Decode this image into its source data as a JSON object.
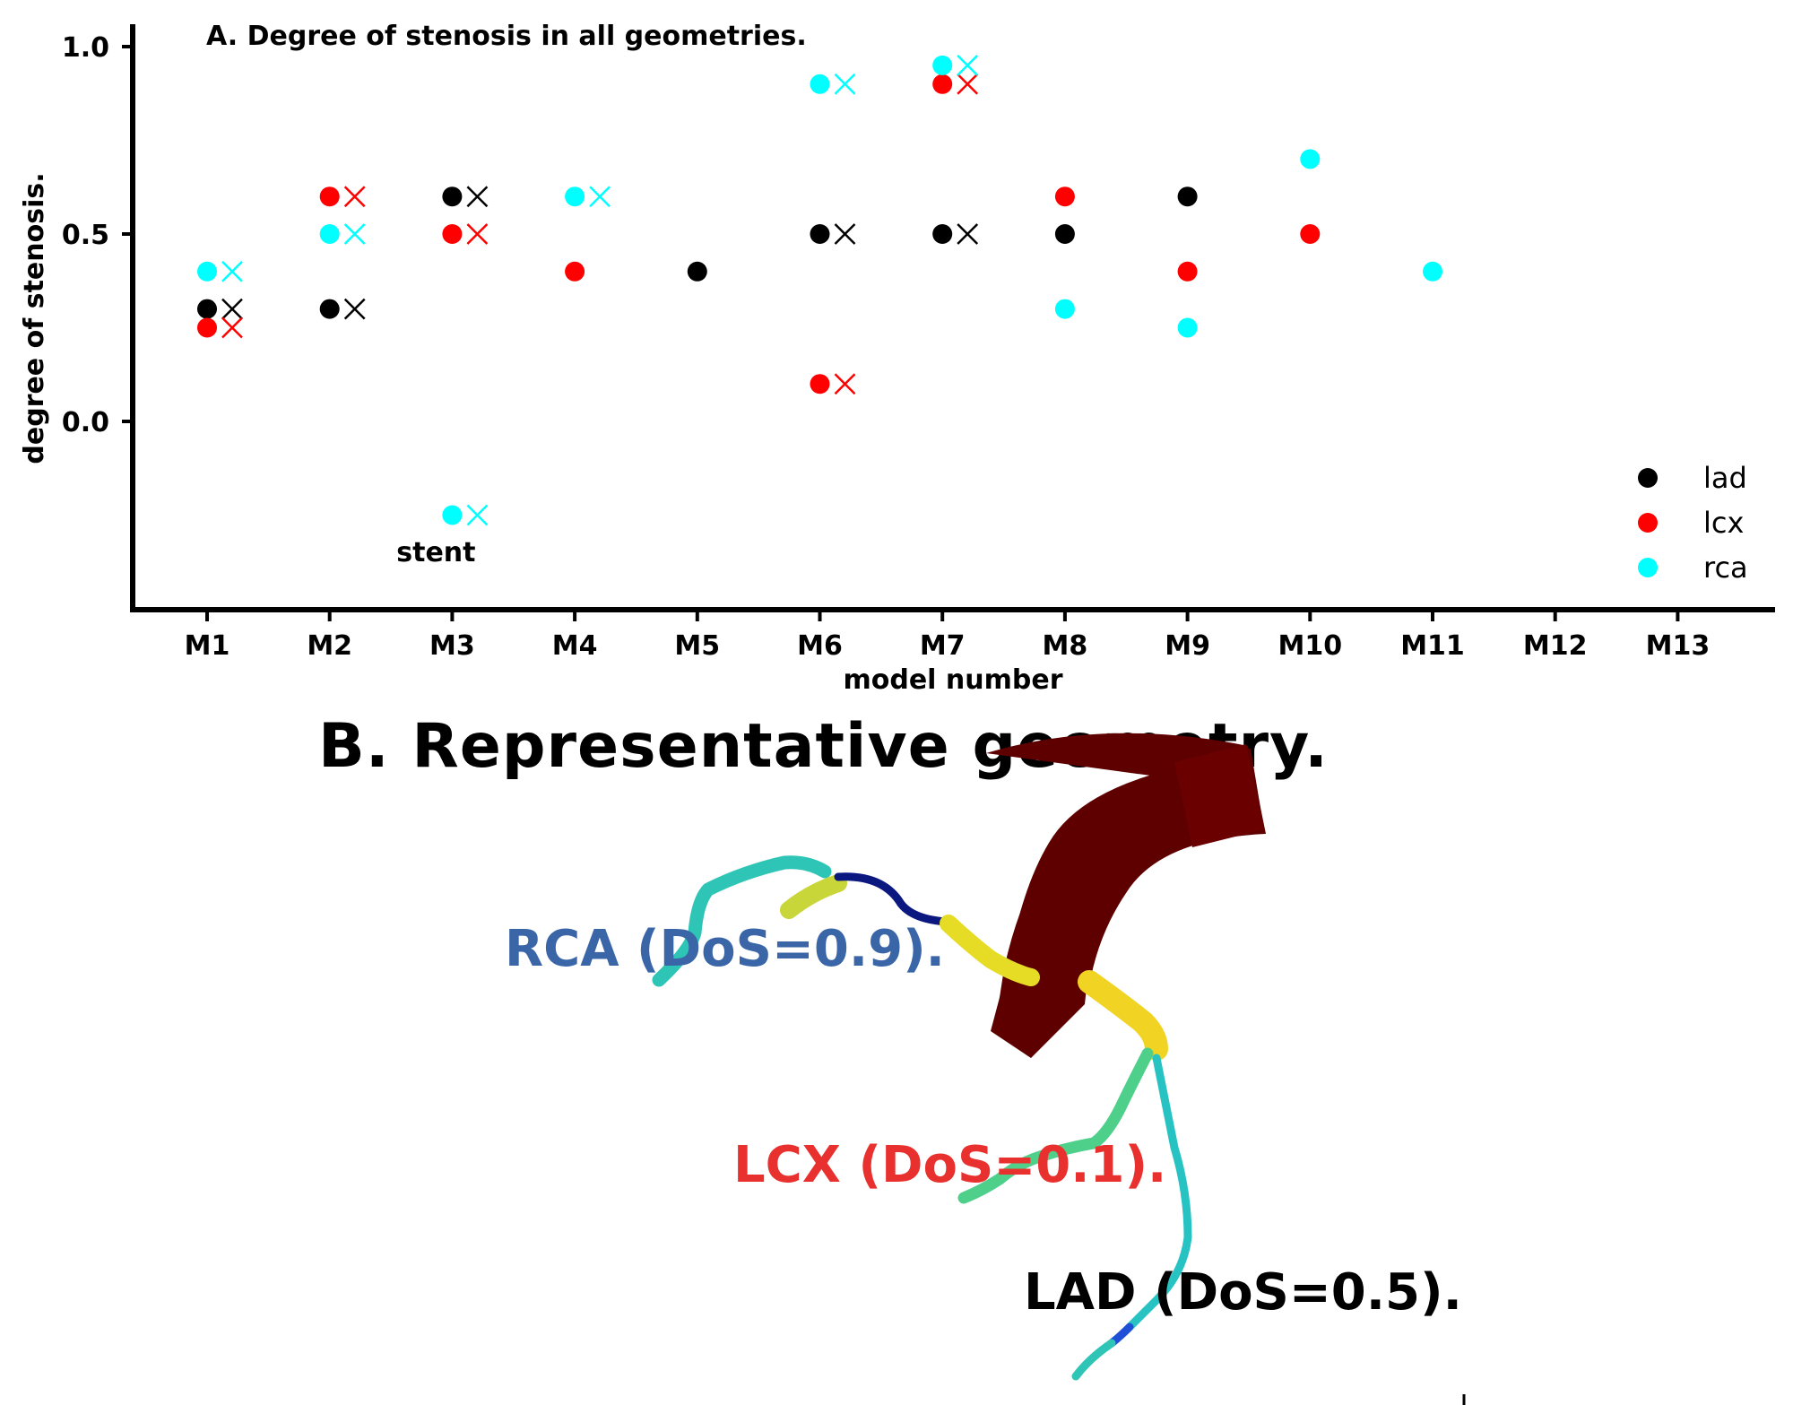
{
  "chart_data": {
    "type": "scatter",
    "title": "A. Degree of stenosis in all geometries.",
    "xlabel": "model number",
    "ylabel": "degree of stenosis.",
    "categories": [
      "M1",
      "M2",
      "M3",
      "M4",
      "M5",
      "M6",
      "M7",
      "M8",
      "M9",
      "M10",
      "M11",
      "M12",
      "M13"
    ],
    "ylim": [
      -0.5,
      1.05
    ],
    "yticks": [
      "0.0",
      "0.5",
      "1.0"
    ],
    "legend_position": "bottom-right",
    "grid": false,
    "series": [
      {
        "name": "lad",
        "color": "#000000",
        "values": [
          0.3,
          0.3,
          0.6,
          null,
          0.4,
          0.5,
          0.5,
          0.5,
          0.6,
          null,
          null,
          null,
          null
        ],
        "crosses": [
          0.3,
          0.3,
          0.6,
          null,
          null,
          0.5,
          0.5,
          null,
          null,
          null,
          null,
          null,
          null
        ]
      },
      {
        "name": "lcx",
        "color": "#ff0000",
        "values": [
          0.25,
          0.6,
          0.5,
          0.4,
          null,
          0.1,
          0.9,
          0.6,
          0.4,
          0.5,
          null,
          null,
          null
        ],
        "crosses": [
          0.25,
          0.6,
          0.5,
          null,
          null,
          0.1,
          0.9,
          null,
          null,
          null,
          null,
          null,
          null
        ]
      },
      {
        "name": "rca",
        "color": "#00ffff",
        "values": [
          0.4,
          0.5,
          -0.25,
          0.6,
          null,
          0.9,
          0.95,
          0.3,
          0.25,
          0.7,
          0.4,
          null,
          null
        ],
        "crosses": [
          0.4,
          0.5,
          -0.25,
          0.6,
          null,
          0.9,
          0.95,
          null,
          null,
          null,
          null,
          null,
          null
        ]
      }
    ],
    "annotations": [
      {
        "text": "stent",
        "category": "M3"
      }
    ]
  },
  "panel_b": {
    "title": "B. Representative geometry.",
    "labels": [
      {
        "text": "RCA (DoS=0.9).",
        "color": "#3a66a8"
      },
      {
        "text": "LCX (DoS=0.1).",
        "color": "#e8312f"
      },
      {
        "text": "LAD (DoS=0.5).",
        "color": "#000000"
      }
    ]
  }
}
